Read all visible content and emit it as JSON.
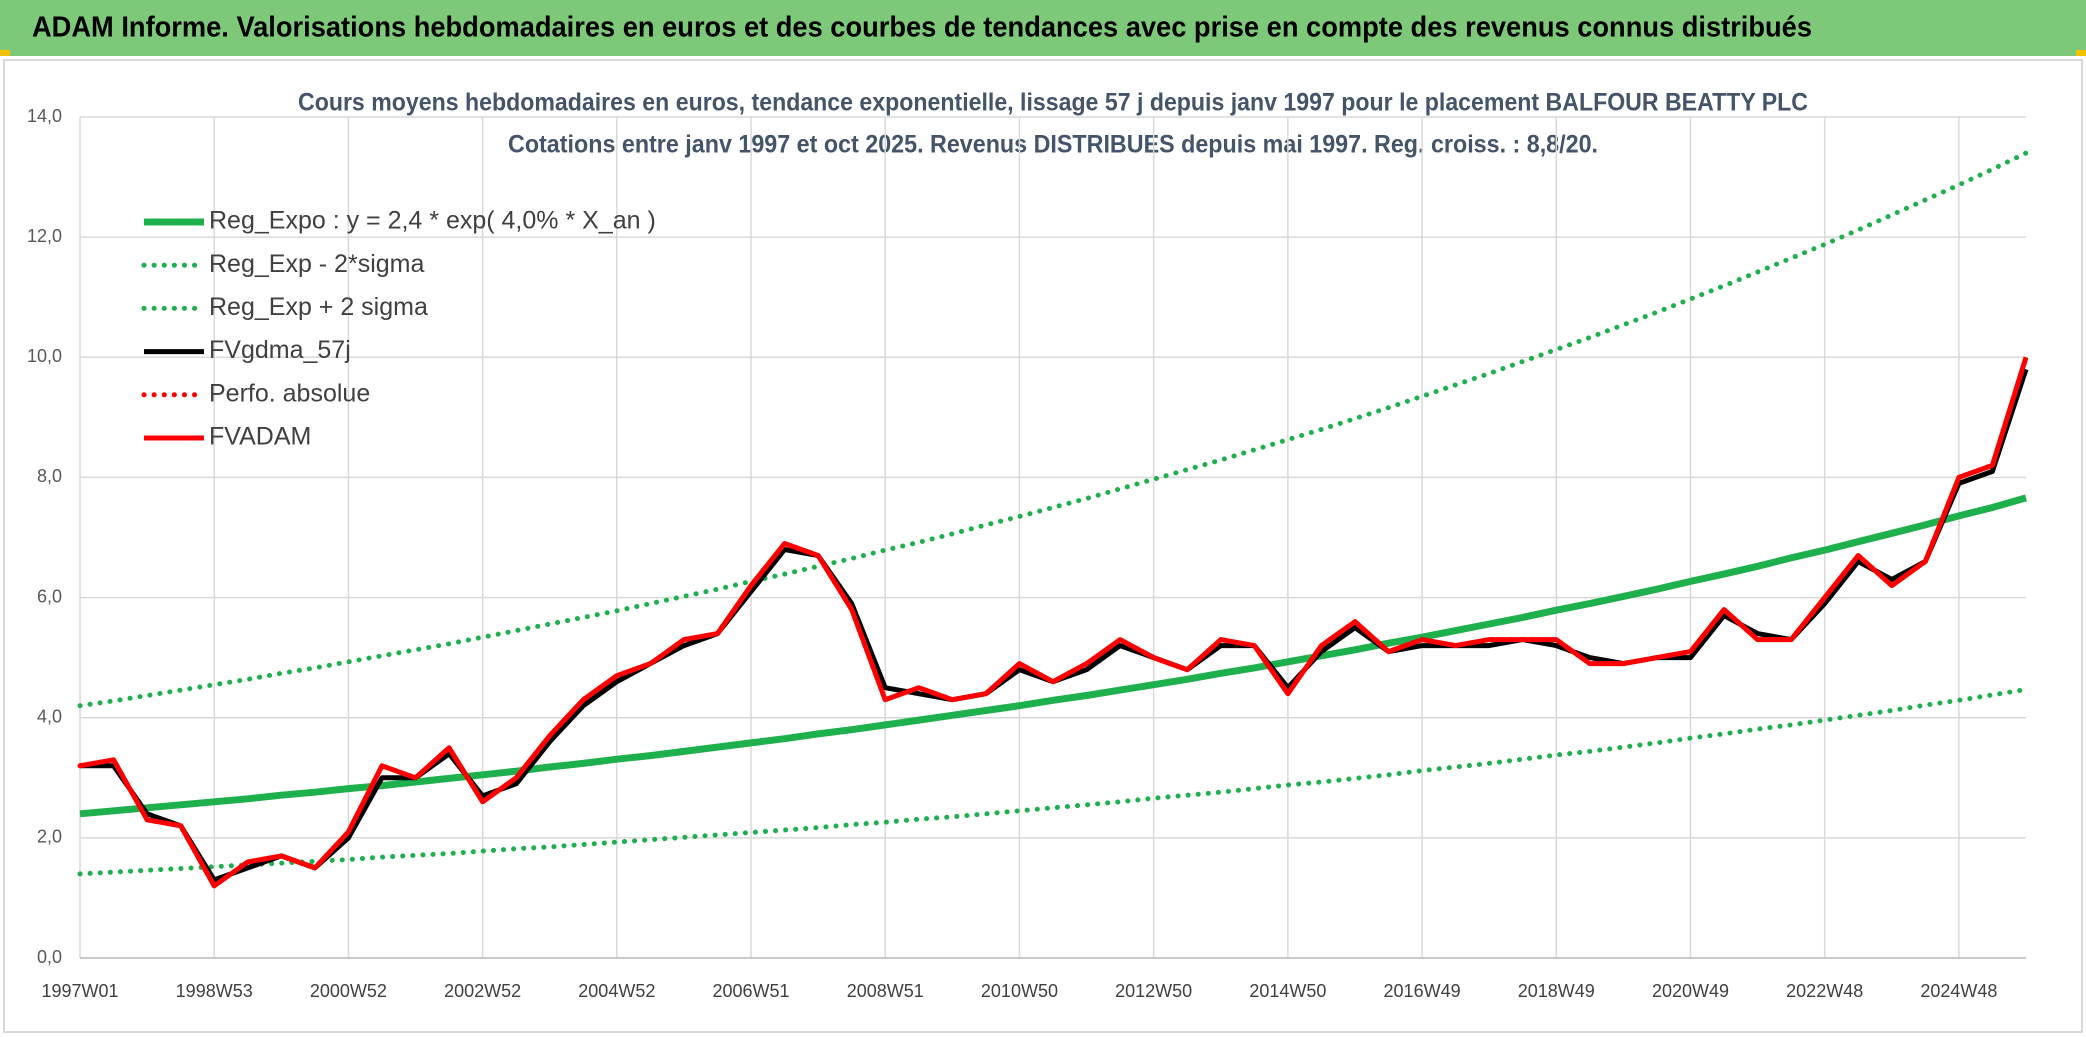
{
  "header": {
    "title": "ADAM Informe. Valorisations hebdomadaires en euros et des courbes de tendances avec prise en compte des revenus connus distribués"
  },
  "chart_data": {
    "type": "line",
    "title": "Cours moyens hebdomadaires en euros, tendance exponentielle, lissage 57 j depuis janv 1997 pour le placement BALFOUR BEATTY PLC",
    "subtitle": "Cotations entre janv 1997 et oct 2025. Revenus DISTRIBUES depuis mai 1997. Reg. croiss. : 8,8/20.",
    "categories": [
      "1997W01",
      null,
      null,
      null,
      "1998W53",
      null,
      null,
      null,
      "2000W52",
      null,
      null,
      null,
      "2002W52",
      null,
      null,
      null,
      "2004W52",
      null,
      null,
      null,
      "2006W51",
      null,
      null,
      null,
      "2008W51",
      null,
      null,
      null,
      "2010W50",
      null,
      null,
      null,
      "2012W50",
      null,
      null,
      null,
      "2014W50",
      null,
      null,
      null,
      "2016W49",
      null,
      null,
      null,
      "2018W49",
      null,
      null,
      null,
      "2020W49",
      null,
      null,
      null,
      "2022W48",
      null,
      null,
      null,
      "2024W48",
      null,
      null
    ],
    "ylim": [
      0,
      14
    ],
    "yticks": [
      {
        "value": 0,
        "label": "0,0"
      },
      {
        "value": 2,
        "label": "2,0"
      },
      {
        "value": 4,
        "label": "4,0"
      },
      {
        "value": 6,
        "label": "6,0"
      },
      {
        "value": 8,
        "label": "8,0"
      },
      {
        "value": 10,
        "label": "10,0"
      },
      {
        "value": 12,
        "label": "12,0"
      },
      {
        "value": 14,
        "label": "14,0"
      }
    ],
    "grid": true,
    "legend": "top-left",
    "series": [
      {
        "name": "Reg_Expo : y = 2,4 * exp( 4,0% *  X_an )",
        "color": "#1db04c",
        "dash": "solid",
        "values": [
          2.4,
          2.45,
          2.5,
          2.55,
          2.6,
          2.65,
          2.71,
          2.76,
          2.82,
          2.87,
          2.93,
          2.99,
          3.05,
          3.11,
          3.18,
          3.24,
          3.31,
          3.37,
          3.44,
          3.51,
          3.58,
          3.65,
          3.73,
          3.8,
          3.88,
          3.96,
          4.04,
          4.12,
          4.2,
          4.29,
          4.37,
          4.46,
          4.55,
          4.64,
          4.74,
          4.83,
          4.93,
          5.03,
          5.13,
          5.24,
          5.34,
          5.45,
          5.56,
          5.67,
          5.79,
          5.9,
          6.02,
          6.14,
          6.27,
          6.39,
          6.52,
          6.66,
          6.79,
          6.93,
          7.07,
          7.21,
          7.36,
          7.5,
          7.66
        ]
      },
      {
        "name": "Reg_Exp - 2*sigma",
        "color": "#1db04c",
        "dash": "dotted",
        "values": [
          1.4,
          1.43,
          1.46,
          1.49,
          1.52,
          1.55,
          1.58,
          1.61,
          1.64,
          1.68,
          1.71,
          1.74,
          1.78,
          1.82,
          1.85,
          1.89,
          1.93,
          1.97,
          2.01,
          2.05,
          2.09,
          2.13,
          2.17,
          2.22,
          2.26,
          2.31,
          2.35,
          2.4,
          2.45,
          2.5,
          2.55,
          2.6,
          2.66,
          2.71,
          2.76,
          2.82,
          2.88,
          2.93,
          2.99,
          3.05,
          3.12,
          3.18,
          3.24,
          3.31,
          3.38,
          3.44,
          3.51,
          3.58,
          3.66,
          3.73,
          3.81,
          3.88,
          3.96,
          4.04,
          4.12,
          4.21,
          4.29,
          4.38,
          4.47
        ]
      },
      {
        "name": "Reg_Exp + 2 sigma",
        "color": "#1db04c",
        "dash": "dotted",
        "values": [
          4.2,
          4.28,
          4.37,
          4.46,
          4.55,
          4.64,
          4.74,
          4.83,
          4.93,
          5.03,
          5.13,
          5.23,
          5.34,
          5.45,
          5.56,
          5.67,
          5.78,
          5.9,
          6.02,
          6.14,
          6.27,
          6.39,
          6.52,
          6.65,
          6.79,
          6.92,
          7.06,
          7.21,
          7.35,
          7.5,
          7.65,
          7.81,
          7.97,
          8.13,
          8.29,
          8.46,
          8.63,
          8.8,
          8.98,
          9.16,
          9.35,
          9.54,
          9.73,
          9.93,
          10.13,
          10.33,
          10.54,
          10.75,
          10.97,
          11.19,
          11.42,
          11.65,
          11.88,
          12.12,
          12.37,
          12.62,
          12.87,
          13.13,
          13.4
        ]
      },
      {
        "name": "FVgdma_57j",
        "color": "#000000",
        "dash": "solid",
        "values": [
          3.2,
          3.2,
          2.4,
          2.2,
          1.3,
          1.5,
          1.7,
          1.5,
          2.0,
          3.0,
          3.0,
          3.4,
          2.7,
          2.9,
          3.6,
          4.2,
          4.6,
          4.9,
          5.2,
          5.4,
          6.1,
          6.8,
          6.7,
          5.9,
          4.5,
          4.4,
          4.3,
          4.4,
          4.8,
          4.6,
          4.8,
          5.2,
          5.0,
          4.8,
          5.2,
          5.2,
          4.5,
          5.1,
          5.5,
          5.1,
          5.2,
          5.2,
          5.2,
          5.3,
          5.2,
          5.0,
          4.9,
          5.0,
          5.0,
          5.7,
          5.4,
          5.3,
          5.9,
          6.6,
          6.3,
          6.6,
          7.9,
          8.1,
          9.8
        ]
      },
      {
        "name": "Perfo. absolue",
        "color": "#ff0000",
        "dash": "dotted",
        "values": [
          3.2,
          3.3,
          2.3,
          2.2,
          1.2,
          1.6,
          1.7,
          1.5,
          2.1,
          3.2,
          3.0,
          3.5,
          2.6,
          3.0,
          3.7,
          4.3,
          4.7,
          4.9,
          5.3,
          5.4,
          6.2,
          6.9,
          6.7,
          5.8,
          4.3,
          4.5,
          4.3,
          4.4,
          4.9,
          4.6,
          4.9,
          5.3,
          5.0,
          4.8,
          5.3,
          5.2,
          4.4,
          5.2,
          5.6,
          5.1,
          5.3,
          5.2,
          5.3,
          5.3,
          5.3,
          4.9,
          4.9,
          5.0,
          5.1,
          5.8,
          5.3,
          5.3,
          6.0,
          6.7,
          6.2,
          6.6,
          8.0,
          8.2,
          10.0
        ]
      },
      {
        "name": "FVADAM",
        "color": "#ff0000",
        "dash": "solid",
        "values": [
          3.2,
          3.3,
          2.3,
          2.2,
          1.2,
          1.6,
          1.7,
          1.5,
          2.1,
          3.2,
          3.0,
          3.5,
          2.6,
          3.0,
          3.7,
          4.3,
          4.7,
          4.9,
          5.3,
          5.4,
          6.2,
          6.9,
          6.7,
          5.8,
          4.3,
          4.5,
          4.3,
          4.4,
          4.9,
          4.6,
          4.9,
          5.3,
          5.0,
          4.8,
          5.3,
          5.2,
          4.4,
          5.2,
          5.6,
          5.1,
          5.3,
          5.2,
          5.3,
          5.3,
          5.3,
          4.9,
          4.9,
          5.0,
          5.1,
          5.8,
          5.3,
          5.3,
          6.0,
          6.7,
          6.2,
          6.6,
          8.0,
          8.2,
          10.0
        ]
      }
    ]
  }
}
